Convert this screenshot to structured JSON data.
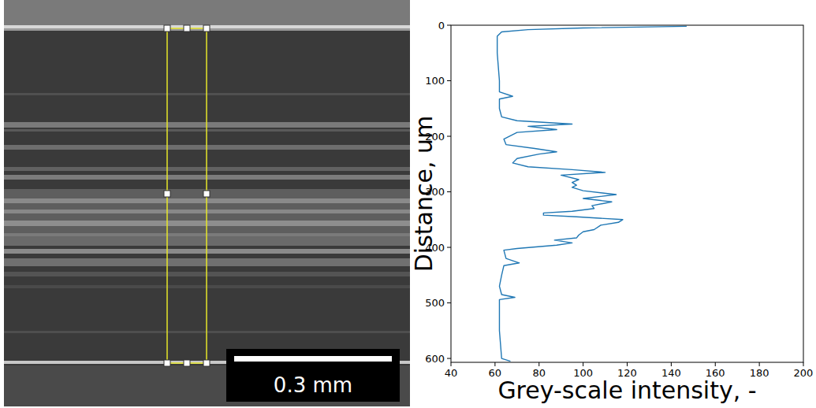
{
  "image": {
    "scale_bar": "0.3 mm"
  },
  "chart_data": {
    "type": "line",
    "orientation": "horizontal",
    "x_label": "Distance, um",
    "y_label": "Grey-scale intensity, -",
    "color": "#1f77b4",
    "x": [
      2,
      5,
      8,
      12,
      20,
      50,
      100,
      120,
      128,
      133,
      150,
      165,
      172,
      178,
      182,
      188,
      193,
      205,
      215,
      222,
      228,
      232,
      240,
      248,
      255,
      260,
      265,
      270,
      278,
      283,
      288,
      292,
      298,
      305,
      312,
      318,
      325,
      330,
      335,
      338,
      342,
      345,
      350,
      355,
      360,
      368,
      372,
      378,
      383,
      387,
      392,
      396,
      402,
      405,
      420,
      428,
      433,
      450,
      470,
      485,
      490,
      494,
      500,
      550,
      600,
      605
    ],
    "values": [
      147,
      100,
      75,
      63,
      61,
      61,
      62,
      62,
      68,
      62,
      62,
      63,
      70,
      95,
      75,
      88,
      70,
      64,
      65,
      78,
      88,
      80,
      70,
      68,
      75,
      95,
      110,
      90,
      98,
      95,
      97,
      95,
      100,
      115,
      100,
      113,
      104,
      105,
      95,
      82,
      82,
      97,
      118,
      116,
      108,
      105,
      100,
      98,
      97,
      87,
      95,
      88,
      70,
      64,
      65,
      71,
      64,
      63,
      62,
      63,
      69,
      62,
      62,
      62,
      63,
      67
    ],
    "xlim": [
      0,
      607
    ],
    "xticks": [
      0,
      100,
      200,
      300,
      400,
      500,
      600
    ],
    "ylim": [
      40,
      200
    ],
    "yticks": [
      40,
      60,
      80,
      100,
      120,
      140,
      160,
      180,
      200
    ],
    "grid": false
  }
}
